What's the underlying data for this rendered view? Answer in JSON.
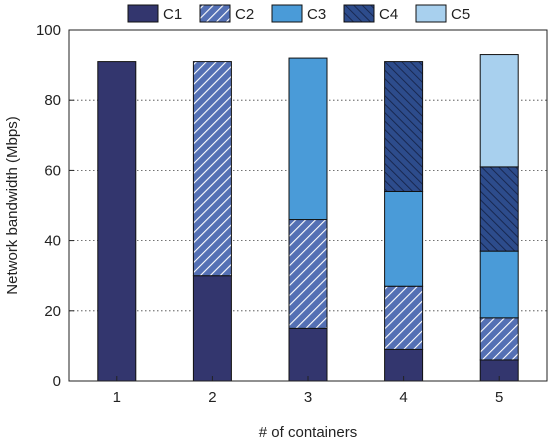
{
  "chart_data": {
    "type": "bar",
    "stacked": true,
    "categories": [
      "1",
      "2",
      "3",
      "4",
      "5"
    ],
    "xlabel": "# of containers",
    "ylabel": "Network bandwidth (Mbps)",
    "ylim": [
      0,
      100
    ],
    "yticks": [
      0,
      20,
      40,
      60,
      80,
      100
    ],
    "grid": "horizontal dotted",
    "legend_position": "top",
    "series": [
      {
        "name": "C1",
        "values": [
          91,
          30,
          15,
          9,
          6
        ],
        "color": "#33366e",
        "pattern": "solid"
      },
      {
        "name": "C2",
        "values": [
          0,
          61,
          31,
          18,
          12
        ],
        "color": "#5470b4",
        "pattern": "hatch-light"
      },
      {
        "name": "C3",
        "values": [
          0,
          0,
          46,
          27,
          19
        ],
        "color": "#4a9bd8",
        "pattern": "solid"
      },
      {
        "name": "C4",
        "values": [
          0,
          0,
          0,
          37,
          24
        ],
        "color": "#2d4c8c",
        "pattern": "hatch-dark"
      },
      {
        "name": "C5",
        "values": [
          0,
          0,
          0,
          0,
          32
        ],
        "color": "#a8d0ee",
        "pattern": "solid"
      }
    ]
  }
}
